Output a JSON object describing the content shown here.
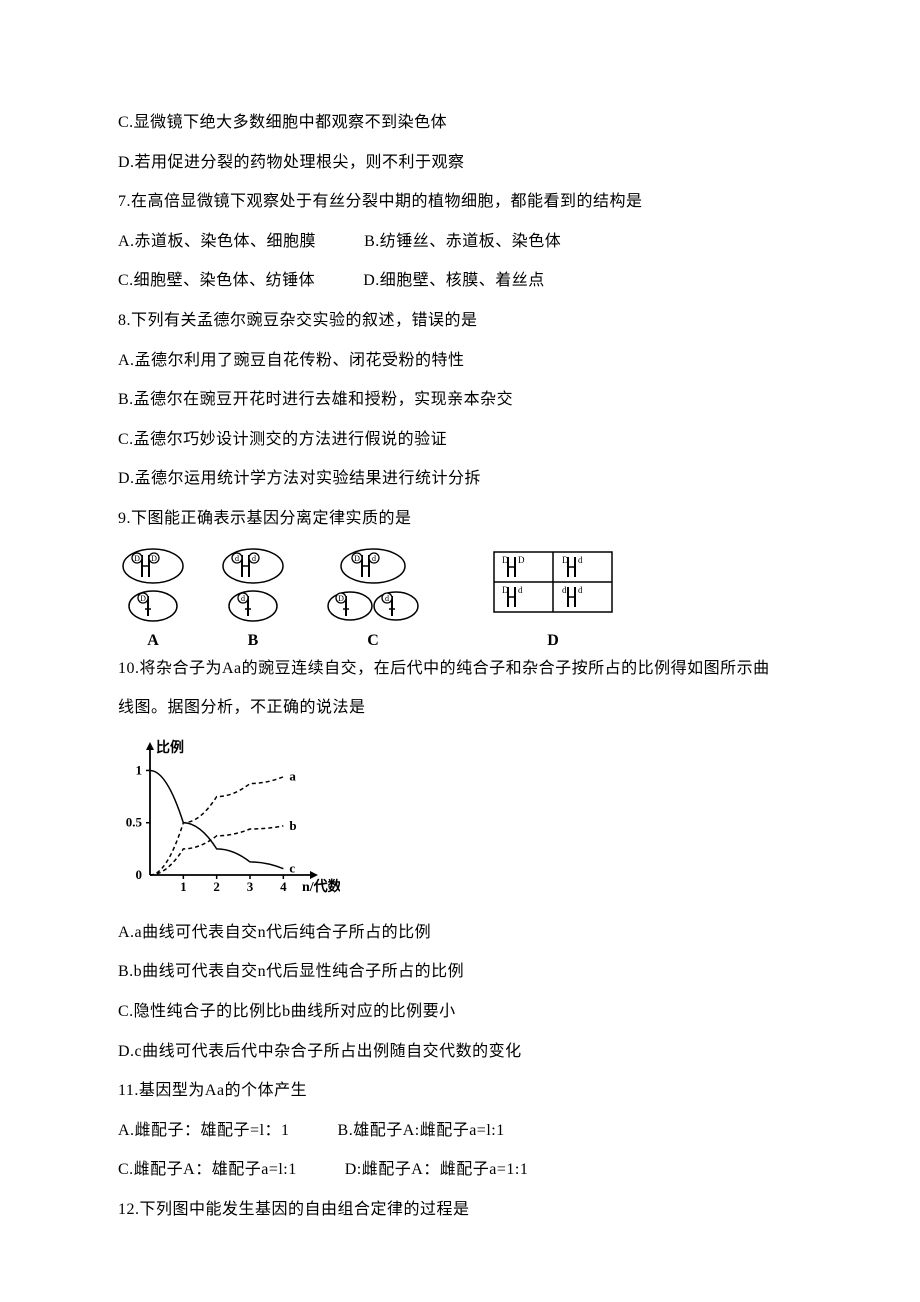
{
  "q6_c": "C.显微镜下绝大多数细胞中都观察不到染色体",
  "q6_d": "D.若用促进分裂的药物处理根尖，则不利于观察",
  "q7_stem": "7.在高倍显微镜下观察处于有丝分裂中期的植物细胞，都能看到的结构是",
  "q7_a": "A.赤道板、染色体、细胞膜",
  "q7_b": "B.纺锤丝、赤道板、染色体",
  "q7_c": "C.细胞壁、染色体、纺锤体",
  "q7_d": "D.细胞壁、核膜、着丝点",
  "q8_stem": "8.下列有关孟德尔豌豆杂交实验的叙述，错误的是",
  "q8_a": "A.孟德尔利用了豌豆自花传粉、闭花受粉的特性",
  "q8_b": "B.孟德尔在豌豆开花时进行去雄和授粉，实现亲本杂交",
  "q8_c": "C.孟德尔巧妙设计测交的方法进行假说的验证",
  "q8_d": "D.孟德尔运用统计学方法对实验结果进行统计分拆",
  "q9_stem": "9.下图能正确表示基因分离定律实质的是",
  "q9_labels": {
    "a": "A",
    "b": "B",
    "c": "C",
    "d": "D"
  },
  "q9_diagram": {
    "ellipse_stroke": "#000000",
    "chrom_stroke": "#000000",
    "stroke_width": 1.5,
    "cells": {
      "A": {
        "top_left": "D",
        "top_right": "D",
        "bot": "D"
      },
      "B": {
        "top_left": "d",
        "top_right": "d",
        "bot": "d"
      },
      "C": {
        "top_left": "D",
        "top_right": "d",
        "bot_left": "D",
        "bot_right": "d"
      },
      "D": {
        "grid": [
          [
            "D",
            "D",
            "D",
            "d"
          ],
          [
            "D",
            "d",
            "d",
            "d"
          ]
        ]
      }
    }
  },
  "q10_stem1": "10.将杂合子为Aa的豌豆连续自交，在后代中的纯合子和杂合子按所占的比例得如图所示曲",
  "q10_stem2": "线图。据图分析，不正确的说法是",
  "q10_chart": {
    "type": "line",
    "x_label": "n/代数",
    "y_label": "比例",
    "xlim": [
      0,
      4.5
    ],
    "ylim": [
      0,
      1.1
    ],
    "xticks": [
      1,
      2,
      3,
      4
    ],
    "yticks": [
      0,
      0.5,
      1
    ],
    "ytick_labels": [
      "0",
      "0.5",
      "1"
    ],
    "axis_color": "#000000",
    "series": [
      {
        "name": "a",
        "label": "a",
        "dash": "4 3",
        "points": [
          [
            0,
            0
          ],
          [
            1,
            0.5
          ],
          [
            2,
            0.75
          ],
          [
            3,
            0.875
          ],
          [
            4,
            0.94
          ]
        ]
      },
      {
        "name": "b",
        "label": "b",
        "dash": "4 3",
        "points": [
          [
            0,
            0
          ],
          [
            1,
            0.25
          ],
          [
            2,
            0.375
          ],
          [
            3,
            0.44
          ],
          [
            4,
            0.47
          ]
        ]
      },
      {
        "name": "c",
        "label": "c",
        "dash": "none",
        "points": [
          [
            0,
            1
          ],
          [
            1,
            0.5
          ],
          [
            2,
            0.25
          ],
          [
            3,
            0.125
          ],
          [
            4,
            0.06
          ]
        ]
      }
    ],
    "line_color": "#000000",
    "line_width": 1.5,
    "background_color": "#ffffff",
    "label_fontsize": 14
  },
  "q10_a": "A.a曲线可代表自交n代后纯合子所占的比例",
  "q10_b": "B.b曲线可代表自交n代后显性纯合子所占的比例",
  "q10_c": "C.隐性纯合子的比例比b曲线所对应的比例要小",
  "q10_d": "D.c曲线可代表后代中杂合子所占出例随自交代数的变化",
  "q11_stem": "11.基因型为Aa的个体产生",
  "q11_a": "A.雌配子：雄配子=l：1",
  "q11_b": "B.雄配子A:雌配子a=l:1",
  "q11_c": "C.雌配子A：雄配子a=l:1",
  "q11_d": "D:雌配子A：雌配子a=1:1",
  "q12_stem": "12.下列图中能发生基因的自由组合定律的过程是"
}
